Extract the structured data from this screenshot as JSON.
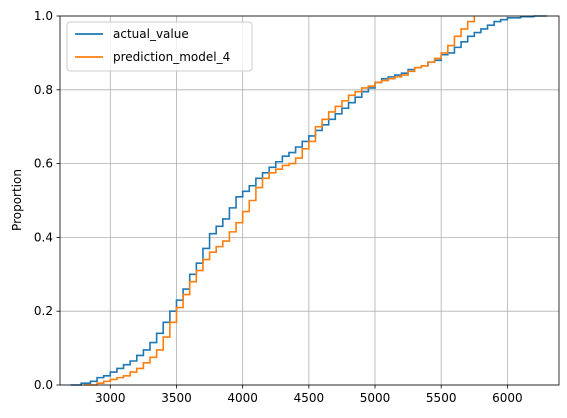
{
  "chart_data": {
    "type": "line",
    "ylabel": "Proportion",
    "xlim": [
      2620,
      6390
    ],
    "ylim": [
      0,
      1
    ],
    "grid": true,
    "legend_position": "upper-left",
    "x_ticks": [
      "3000",
      "3500",
      "4000",
      "4500",
      "5000",
      "5500",
      "6000"
    ],
    "x_tick_values": [
      3000,
      3500,
      4000,
      4500,
      5000,
      5500,
      6000
    ],
    "y_ticks": [
      "0.0",
      "0.2",
      "0.4",
      "0.6",
      "0.8",
      "1.0"
    ],
    "y_tick_values": [
      0,
      0.2,
      0.4,
      0.6,
      0.8,
      1.0
    ],
    "series": [
      {
        "name": "actual_value",
        "color": "#1f77b4",
        "step": true,
        "x": [
          2700,
          2780,
          2850,
          2900,
          2950,
          3000,
          3050,
          3100,
          3150,
          3200,
          3250,
          3300,
          3350,
          3400,
          3450,
          3500,
          3550,
          3600,
          3650,
          3700,
          3750,
          3800,
          3850,
          3900,
          3950,
          4000,
          4050,
          4100,
          4150,
          4200,
          4250,
          4300,
          4350,
          4400,
          4450,
          4500,
          4550,
          4600,
          4650,
          4700,
          4750,
          4800,
          4850,
          4900,
          4950,
          5000,
          5050,
          5100,
          5150,
          5200,
          5250,
          5300,
          5350,
          5400,
          5450,
          5500,
          5550,
          5600,
          5650,
          5700,
          5750,
          5800,
          5850,
          5900,
          5950,
          6000,
          6100,
          6200,
          6300
        ],
        "y": [
          0.0,
          0.005,
          0.01,
          0.02,
          0.025,
          0.035,
          0.045,
          0.055,
          0.065,
          0.08,
          0.095,
          0.115,
          0.14,
          0.17,
          0.2,
          0.23,
          0.26,
          0.3,
          0.33,
          0.37,
          0.41,
          0.43,
          0.45,
          0.48,
          0.51,
          0.525,
          0.54,
          0.56,
          0.575,
          0.59,
          0.605,
          0.62,
          0.63,
          0.645,
          0.66,
          0.675,
          0.69,
          0.705,
          0.72,
          0.735,
          0.75,
          0.765,
          0.78,
          0.795,
          0.805,
          0.82,
          0.83,
          0.835,
          0.84,
          0.845,
          0.855,
          0.86,
          0.865,
          0.875,
          0.88,
          0.895,
          0.9,
          0.915,
          0.93,
          0.945,
          0.955,
          0.965,
          0.975,
          0.985,
          0.99,
          0.995,
          0.998,
          1.0,
          1.0
        ]
      },
      {
        "name": "prediction_model_4",
        "color": "#ff7f0e",
        "step": true,
        "x": [
          2800,
          2900,
          2950,
          3000,
          3050,
          3100,
          3150,
          3200,
          3250,
          3300,
          3350,
          3400,
          3450,
          3500,
          3550,
          3600,
          3650,
          3700,
          3750,
          3800,
          3850,
          3900,
          3950,
          4000,
          4050,
          4100,
          4150,
          4200,
          4250,
          4300,
          4350,
          4400,
          4450,
          4500,
          4550,
          4600,
          4650,
          4700,
          4750,
          4800,
          4850,
          4900,
          4950,
          5000,
          5050,
          5100,
          5150,
          5200,
          5250,
          5300,
          5350,
          5400,
          5450,
          5500,
          5550,
          5600,
          5650,
          5700,
          5750
        ],
        "y": [
          0.0,
          0.005,
          0.01,
          0.015,
          0.02,
          0.025,
          0.035,
          0.045,
          0.06,
          0.075,
          0.095,
          0.13,
          0.17,
          0.21,
          0.245,
          0.28,
          0.31,
          0.34,
          0.36,
          0.375,
          0.39,
          0.415,
          0.44,
          0.47,
          0.5,
          0.535,
          0.56,
          0.575,
          0.585,
          0.595,
          0.6,
          0.615,
          0.64,
          0.66,
          0.7,
          0.72,
          0.74,
          0.755,
          0.77,
          0.785,
          0.795,
          0.805,
          0.81,
          0.82,
          0.825,
          0.83,
          0.835,
          0.84,
          0.85,
          0.86,
          0.865,
          0.875,
          0.885,
          0.9,
          0.92,
          0.945,
          0.965,
          0.985,
          1.0
        ]
      }
    ]
  }
}
